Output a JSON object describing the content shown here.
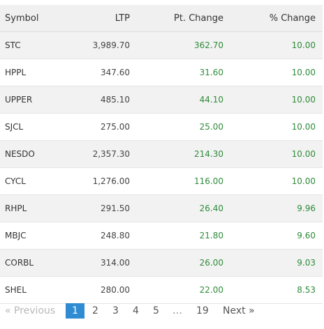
{
  "table": {
    "headers": {
      "symbol": "Symbol",
      "ltp": "LTP",
      "pt_change": "Pt. Change",
      "pct_change": "% Change"
    },
    "rows": [
      {
        "symbol": "STC",
        "ltp": "3,989.70",
        "pt_change": "362.70",
        "pct_change": "10.00"
      },
      {
        "symbol": "HPPL",
        "ltp": "347.60",
        "pt_change": "31.60",
        "pct_change": "10.00"
      },
      {
        "symbol": "UPPER",
        "ltp": "485.10",
        "pt_change": "44.10",
        "pct_change": "10.00"
      },
      {
        "symbol": "SJCL",
        "ltp": "275.00",
        "pt_change": "25.00",
        "pct_change": "10.00"
      },
      {
        "symbol": "NESDO",
        "ltp": "2,357.30",
        "pt_change": "214.30",
        "pct_change": "10.00"
      },
      {
        "symbol": "CYCL",
        "ltp": "1,276.00",
        "pt_change": "116.00",
        "pct_change": "10.00"
      },
      {
        "symbol": "RHPL",
        "ltp": "291.50",
        "pt_change": "26.40",
        "pct_change": "9.96"
      },
      {
        "symbol": "MBJC",
        "ltp": "248.80",
        "pt_change": "21.80",
        "pct_change": "9.60"
      },
      {
        "symbol": "CORBL",
        "ltp": "314.00",
        "pt_change": "26.00",
        "pct_change": "9.03"
      },
      {
        "symbol": "SHEL",
        "ltp": "280.00",
        "pt_change": "22.00",
        "pct_change": "8.53"
      }
    ]
  },
  "pagination": {
    "previous_label": "« Previous",
    "pages": [
      "1",
      "2",
      "3",
      "4",
      "5"
    ],
    "ellipsis": "…",
    "last_page": "19",
    "next_label": "Next »",
    "current_page": "1"
  },
  "colors": {
    "positive": "#2e8b3a",
    "active_page": "#2f8cd3",
    "header_bg": "#f0f0f0",
    "stripe_bg": "#f2f2f2"
  }
}
